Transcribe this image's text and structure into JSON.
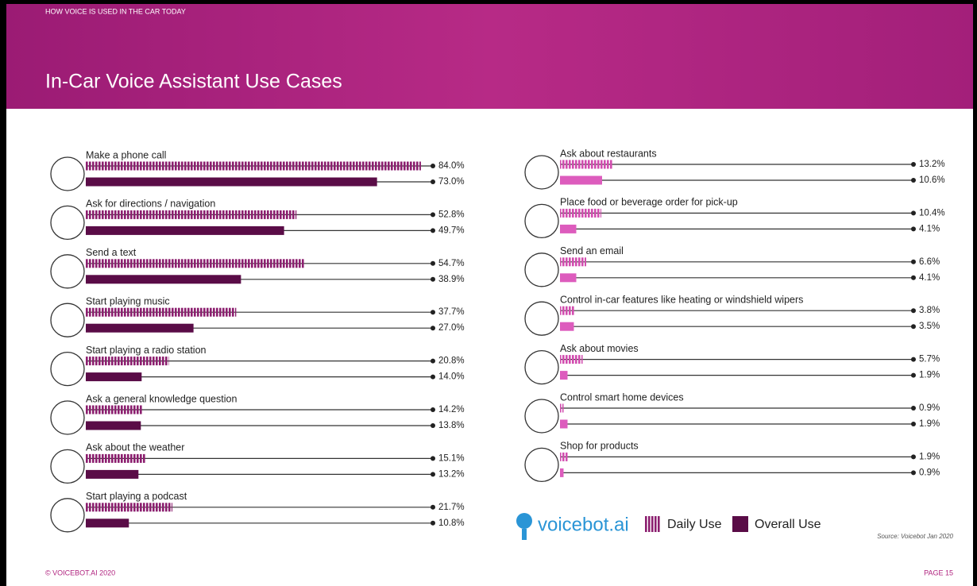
{
  "header": {
    "kicker": "HOW VOICE IS USED IN THE CAR TODAY",
    "title": "In-Car Voice Assistant Use Cases"
  },
  "chart_data": [
    {
      "type": "bar",
      "orientation": "horizontal",
      "xlim": [
        0,
        87
      ],
      "categories": [
        "Make a phone call",
        "Ask for directions / navigation",
        "Send a text",
        "Start playing music",
        "Start playing a radio station",
        "Ask a general knowledge question",
        "Ask about the weather",
        "Start playing a podcast"
      ],
      "series": [
        {
          "name": "Daily Use",
          "color": "#8c1f6f",
          "values": [
            84.0,
            52.8,
            54.7,
            37.7,
            20.8,
            14.2,
            15.1,
            21.7
          ],
          "value_labels": [
            "84.0%",
            "52.8%",
            "54.7%",
            "37.7%",
            "20.8%",
            "14.2%",
            "15.1%",
            "21.7%"
          ]
        },
        {
          "name": "Overall Use",
          "color": "#5a0c47",
          "values": [
            73.0,
            49.7,
            38.9,
            27.0,
            14.0,
            13.8,
            13.2,
            10.8
          ],
          "value_labels": [
            "73.0%",
            "49.7%",
            "38.9%",
            "27.0%",
            "14.0%",
            "13.8%",
            "13.2%",
            "10.8%"
          ]
        }
      ]
    },
    {
      "type": "bar",
      "orientation": "horizontal",
      "xlim": [
        0,
        89
      ],
      "categories": [
        "Ask about restaurants",
        "Place food or beverage order for pick-up",
        "Send an email",
        "Control in-car features like heating or windshield wipers",
        "Ask about movies",
        "Control smart home devices",
        "Shop for products"
      ],
      "series": [
        {
          "color": "#d24daf",
          "values": [
            13.2,
            10.4,
            6.6,
            3.8,
            5.7,
            0.9,
            1.9
          ],
          "value_labels": [
            "13.2%",
            "10.4%",
            "6.6%",
            "3.8%",
            "5.7%",
            "0.9%",
            "1.9%"
          ]
        },
        {
          "color": "#dd5cbd",
          "values": [
            10.6,
            4.1,
            4.1,
            3.5,
            1.9,
            1.9,
            0.9
          ],
          "value_labels": [
            "10.6%",
            "4.1%",
            "4.1%",
            "3.5%",
            "1.9%",
            "1.9%",
            "0.9%"
          ]
        }
      ]
    }
  ],
  "logo": "voicebot.ai",
  "source": "Source: Voicebot Jan 2020",
  "footer": {
    "left": "© VOICEBOT.AI 2020",
    "right": "PAGE 15"
  }
}
